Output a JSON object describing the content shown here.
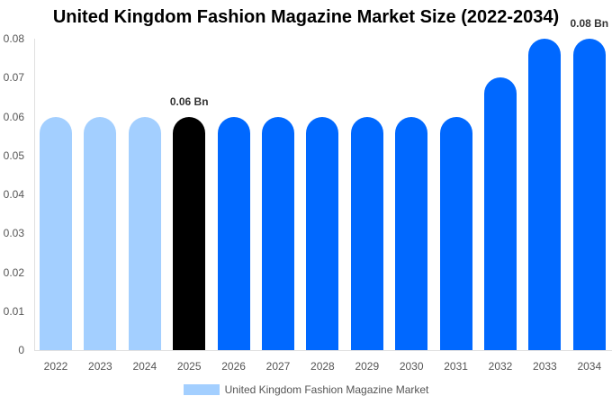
{
  "chart_data": {
    "type": "bar",
    "title": "United Kingdom Fashion Magazine Market Size (2022-2034)",
    "xlabel": "",
    "ylabel": "",
    "categories": [
      "2022",
      "2023",
      "2024",
      "2025",
      "2026",
      "2027",
      "2028",
      "2029",
      "2030",
      "2031",
      "2032",
      "2033",
      "2034"
    ],
    "series": [
      {
        "name": "United Kingdom Fashion Magazine Market",
        "values": [
          0.06,
          0.06,
          0.06,
          0.06,
          0.06,
          0.06,
          0.06,
          0.06,
          0.06,
          0.06,
          0.07,
          0.08,
          0.08
        ],
        "colors": [
          "#a3cfff",
          "#a3cfff",
          "#a3cfff",
          "#000000",
          "#0068ff",
          "#0068ff",
          "#0068ff",
          "#0068ff",
          "#0068ff",
          "#0068ff",
          "#0068ff",
          "#0068ff",
          "#0068ff"
        ]
      }
    ],
    "ylim": [
      0,
      0.08
    ],
    "yticks": [
      "0",
      "0.01",
      "0.02",
      "0.03",
      "0.04",
      "0.05",
      "0.06",
      "0.07",
      "0.08"
    ],
    "annotations": [
      {
        "category": "2025",
        "text": "0.06 Bn"
      },
      {
        "category": "2034",
        "text": "0.08 Bn"
      }
    ],
    "grid": false,
    "legend_position": "bottom"
  },
  "legend": {
    "label": "United Kingdom Fashion Magazine Market",
    "color": "#a3cfff"
  }
}
